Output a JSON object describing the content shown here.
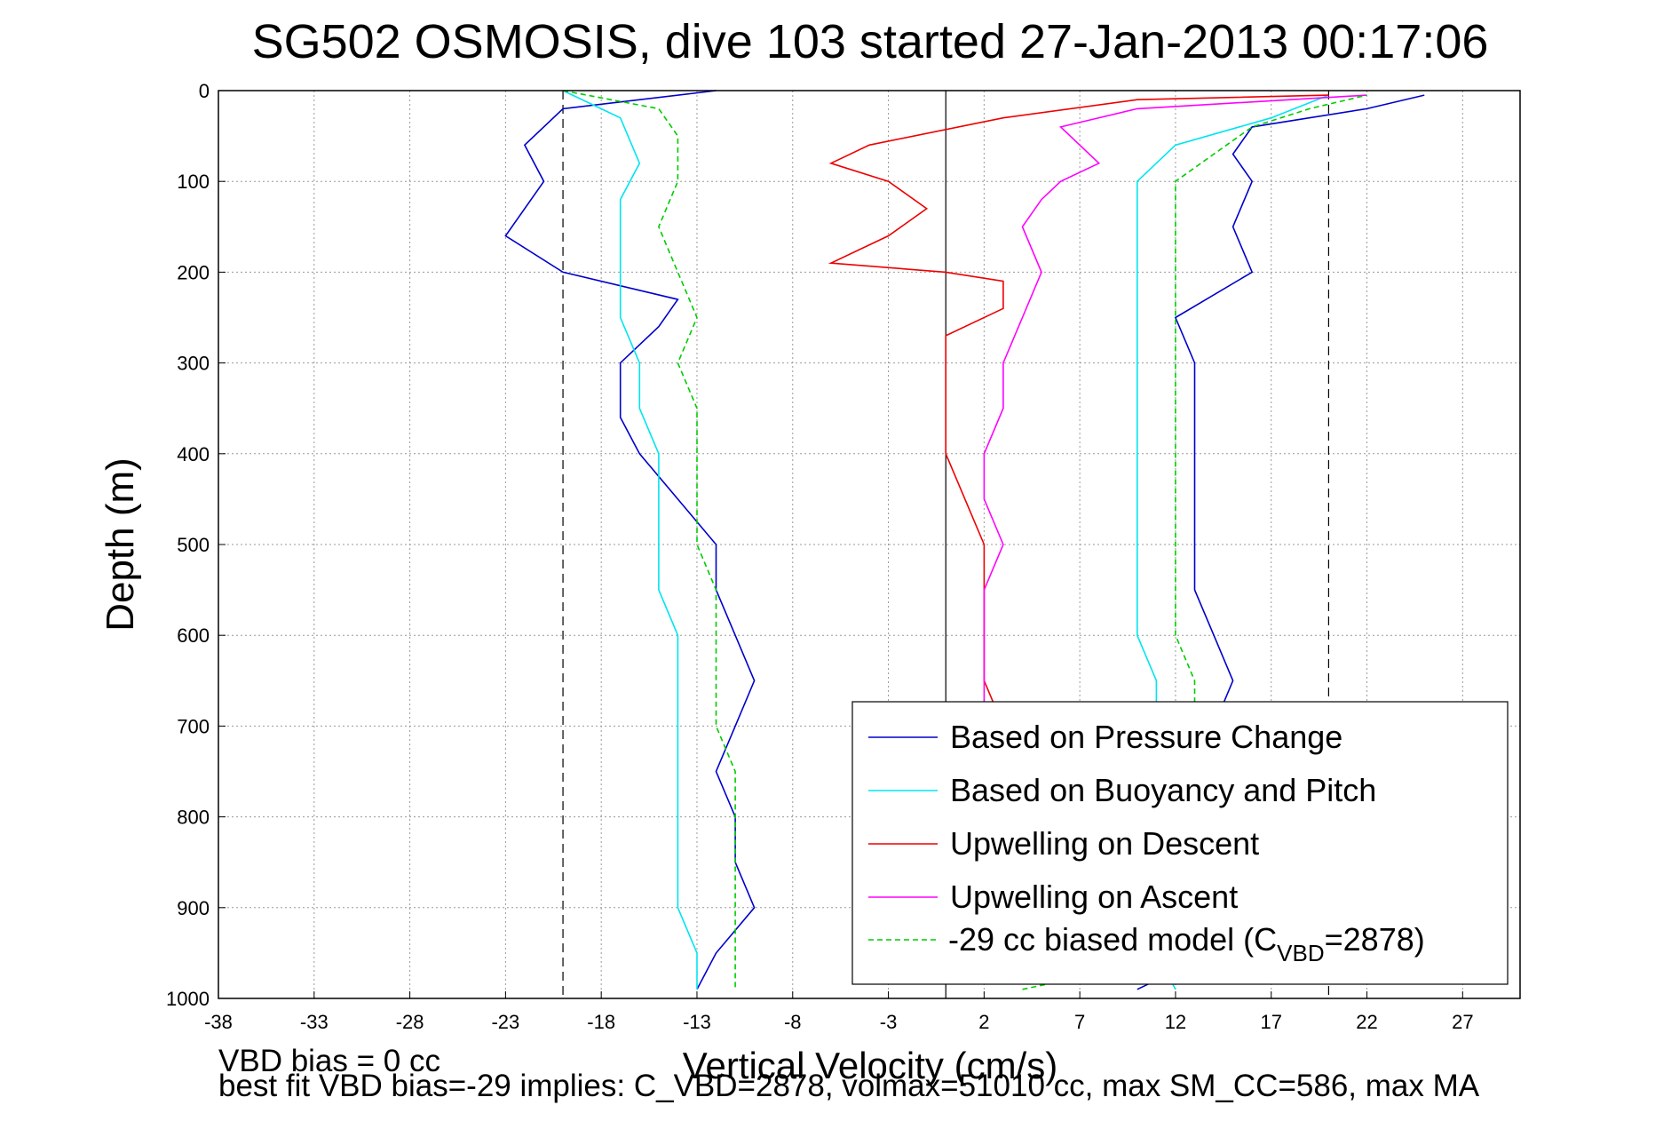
{
  "chart_data": {
    "type": "line",
    "title": "SG502 OSMOSIS, dive 103 started 27-Jan-2013 00:17:06",
    "xlabel": "Vertical Velocity (cm/s)",
    "ylabel": "Depth (m)",
    "xlim": [
      -38,
      30
    ],
    "ylim": [
      1000,
      0
    ],
    "y_reversed": true,
    "grid": true,
    "xticks": [
      "-38",
      "-33",
      "-28",
      "-23",
      "-18",
      "-13",
      "-8",
      "-3",
      "2",
      "7",
      "12",
      "17",
      "22",
      "27"
    ],
    "yticks": [
      "0",
      "100",
      "200",
      "300",
      "400",
      "500",
      "600",
      "700",
      "800",
      "900",
      "1000"
    ],
    "reference_lines": {
      "solid_x": 0,
      "dashed_x": [
        -20,
        20
      ]
    },
    "legend_position": "bottom-right",
    "series": [
      {
        "name": "Based on Pressure Change",
        "color": "#0000cc",
        "descent": [
          [
            -12,
            0
          ],
          [
            -20,
            20
          ],
          [
            -22,
            60
          ],
          [
            -21,
            100
          ],
          [
            -23,
            160
          ],
          [
            -20,
            200
          ],
          [
            -14,
            230
          ],
          [
            -15,
            260
          ],
          [
            -17,
            300
          ],
          [
            -17,
            360
          ],
          [
            -16,
            400
          ],
          [
            -14,
            450
          ],
          [
            -12,
            500
          ],
          [
            -12,
            550
          ],
          [
            -11,
            600
          ],
          [
            -10,
            650
          ],
          [
            -11,
            700
          ],
          [
            -12,
            750
          ],
          [
            -11,
            800
          ],
          [
            -11,
            850
          ],
          [
            -10,
            900
          ],
          [
            -12,
            950
          ],
          [
            -13,
            990
          ]
        ],
        "ascent": [
          [
            10,
            990
          ],
          [
            14,
            950
          ],
          [
            14,
            900
          ],
          [
            14,
            850
          ],
          [
            14,
            800
          ],
          [
            14,
            750
          ],
          [
            14,
            700
          ],
          [
            15,
            650
          ],
          [
            14,
            600
          ],
          [
            13,
            550
          ],
          [
            13,
            500
          ],
          [
            13,
            450
          ],
          [
            13,
            400
          ],
          [
            13,
            350
          ],
          [
            13,
            300
          ],
          [
            12,
            250
          ],
          [
            16,
            200
          ],
          [
            15,
            150
          ],
          [
            16,
            100
          ],
          [
            15,
            70
          ],
          [
            16,
            40
          ],
          [
            22,
            20
          ],
          [
            25,
            5
          ]
        ]
      },
      {
        "name": "Based on Buoyancy and Pitch",
        "color": "#00e5ee",
        "descent": [
          [
            -20,
            0
          ],
          [
            -17,
            30
          ],
          [
            -16,
            80
          ],
          [
            -17,
            120
          ],
          [
            -17,
            160
          ],
          [
            -17,
            200
          ],
          [
            -17,
            250
          ],
          [
            -16,
            300
          ],
          [
            -16,
            350
          ],
          [
            -15,
            400
          ],
          [
            -15,
            450
          ],
          [
            -15,
            500
          ],
          [
            -15,
            550
          ],
          [
            -14,
            600
          ],
          [
            -14,
            650
          ],
          [
            -14,
            700
          ],
          [
            -14,
            750
          ],
          [
            -14,
            800
          ],
          [
            -14,
            850
          ],
          [
            -14,
            900
          ],
          [
            -13,
            950
          ],
          [
            -13,
            990
          ]
        ],
        "ascent": [
          [
            12,
            990
          ],
          [
            11,
            950
          ],
          [
            11,
            900
          ],
          [
            11,
            850
          ],
          [
            11,
            800
          ],
          [
            11,
            750
          ],
          [
            11,
            700
          ],
          [
            11,
            650
          ],
          [
            10,
            600
          ],
          [
            10,
            550
          ],
          [
            10,
            500
          ],
          [
            10,
            450
          ],
          [
            10,
            400
          ],
          [
            10,
            350
          ],
          [
            10,
            300
          ],
          [
            10,
            250
          ],
          [
            10,
            200
          ],
          [
            10,
            150
          ],
          [
            10,
            100
          ],
          [
            12,
            60
          ],
          [
            17,
            30
          ],
          [
            20,
            5
          ]
        ]
      },
      {
        "name": "Upwelling on Descent",
        "color": "#ee0000",
        "descent": [
          [
            20,
            5
          ],
          [
            10,
            10
          ],
          [
            3,
            30
          ],
          [
            -4,
            60
          ],
          [
            -6,
            80
          ],
          [
            -3,
            100
          ],
          [
            -1,
            130
          ],
          [
            -3,
            160
          ],
          [
            -6,
            190
          ],
          [
            0,
            200
          ],
          [
            3,
            210
          ],
          [
            3,
            240
          ],
          [
            0,
            270
          ],
          [
            0,
            300
          ],
          [
            0,
            350
          ],
          [
            0,
            400
          ],
          [
            1,
            450
          ],
          [
            2,
            500
          ],
          [
            2,
            550
          ],
          [
            2,
            600
          ],
          [
            2,
            650
          ],
          [
            3,
            700
          ]
        ]
      },
      {
        "name": "Upwelling on Ascent",
        "color": "#ff00ff",
        "ascent": [
          [
            2,
            700
          ],
          [
            2,
            650
          ],
          [
            2,
            600
          ],
          [
            2,
            550
          ],
          [
            3,
            500
          ],
          [
            2,
            450
          ],
          [
            2,
            400
          ],
          [
            3,
            350
          ],
          [
            3,
            300
          ],
          [
            4,
            250
          ],
          [
            5,
            200
          ],
          [
            4,
            150
          ],
          [
            5,
            120
          ],
          [
            6,
            100
          ],
          [
            8,
            80
          ],
          [
            6,
            40
          ],
          [
            10,
            20
          ],
          [
            22,
            5
          ]
        ]
      },
      {
        "name": "-29 cc biased model (C_VBD=2878)",
        "color": "#00cc00",
        "dashed": true,
        "descent": [
          [
            -20,
            0
          ],
          [
            -15,
            20
          ],
          [
            -14,
            50
          ],
          [
            -14,
            100
          ],
          [
            -15,
            150
          ],
          [
            -14,
            200
          ],
          [
            -13,
            250
          ],
          [
            -14,
            300
          ],
          [
            -13,
            350
          ],
          [
            -13,
            400
          ],
          [
            -13,
            450
          ],
          [
            -13,
            500
          ],
          [
            -12,
            550
          ],
          [
            -12,
            600
          ],
          [
            -12,
            650
          ],
          [
            -12,
            700
          ],
          [
            -11,
            750
          ],
          [
            -11,
            800
          ],
          [
            -11,
            850
          ],
          [
            -11,
            900
          ],
          [
            -11,
            950
          ],
          [
            -11,
            990
          ]
        ],
        "ascent": [
          [
            4,
            990
          ],
          [
            13,
            950
          ],
          [
            13,
            900
          ],
          [
            13,
            850
          ],
          [
            13,
            800
          ],
          [
            13,
            750
          ],
          [
            13,
            700
          ],
          [
            13,
            650
          ],
          [
            12,
            600
          ],
          [
            12,
            550
          ],
          [
            12,
            500
          ],
          [
            12,
            450
          ],
          [
            12,
            400
          ],
          [
            12,
            350
          ],
          [
            12,
            300
          ],
          [
            12,
            250
          ],
          [
            12,
            200
          ],
          [
            12,
            150
          ],
          [
            12,
            100
          ],
          [
            14,
            70
          ],
          [
            16,
            40
          ],
          [
            19,
            20
          ],
          [
            22,
            5
          ]
        ]
      }
    ],
    "legend": {
      "entries": [
        "Based on Pressure Change",
        "Based on Buoyancy and Pitch",
        "Upwelling on Descent",
        "Upwelling on Ascent"
      ],
      "last_prefix": "-29 cc biased model (C",
      "last_sub": "VBD",
      "last_suffix": "=2878)"
    }
  },
  "footer": {
    "line1": "VBD bias = 0 cc",
    "line2": "best fit VBD bias=-29 implies: C_VBD=2878, volmax=51010 cc, max SM_CC=586, max MA"
  }
}
